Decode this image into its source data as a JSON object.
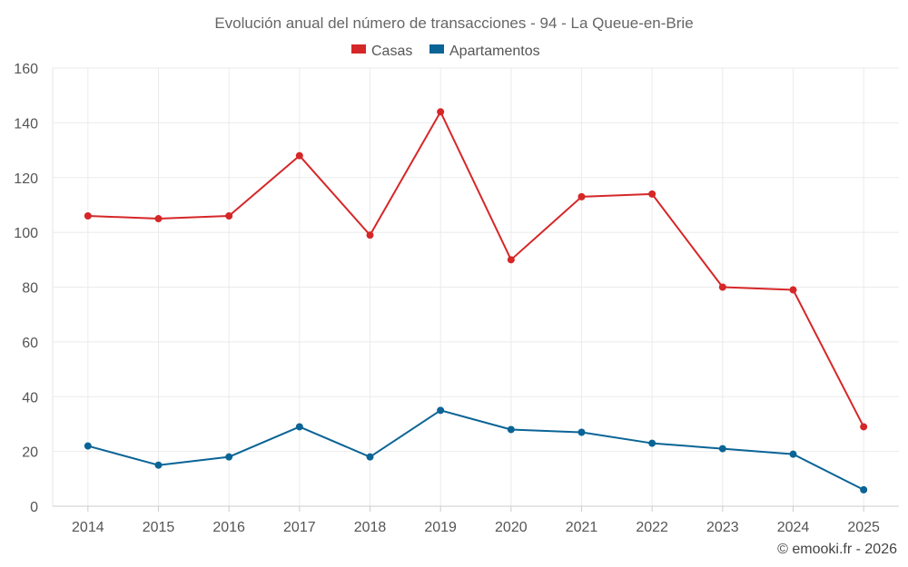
{
  "chart_data": {
    "type": "line",
    "title": "Evolución anual del número de transacciones - 94 - La Queue-en-Brie",
    "xlabel": "",
    "ylabel": "",
    "categories": [
      "2014",
      "2015",
      "2016",
      "2017",
      "2018",
      "2019",
      "2020",
      "2021",
      "2022",
      "2023",
      "2024",
      "2025"
    ],
    "ylim": [
      0,
      160
    ],
    "yticks": [
      0,
      20,
      40,
      60,
      80,
      100,
      120,
      140,
      160
    ],
    "ytick_labels": [
      "0",
      "20",
      "40",
      "60",
      "80",
      "100",
      "120",
      "140",
      "160"
    ],
    "grid": true,
    "legend_position": "top-center",
    "series": [
      {
        "name": "Casas",
        "color": "#d62728",
        "values": [
          106,
          105,
          106,
          128,
          99,
          144,
          90,
          113,
          114,
          80,
          79,
          29
        ]
      },
      {
        "name": "Apartamentos",
        "color": "#0a6496",
        "values": [
          22,
          15,
          18,
          29,
          18,
          35,
          28,
          27,
          23,
          21,
          19,
          6
        ]
      }
    ],
    "credit": "© emooki.fr - 2026"
  }
}
